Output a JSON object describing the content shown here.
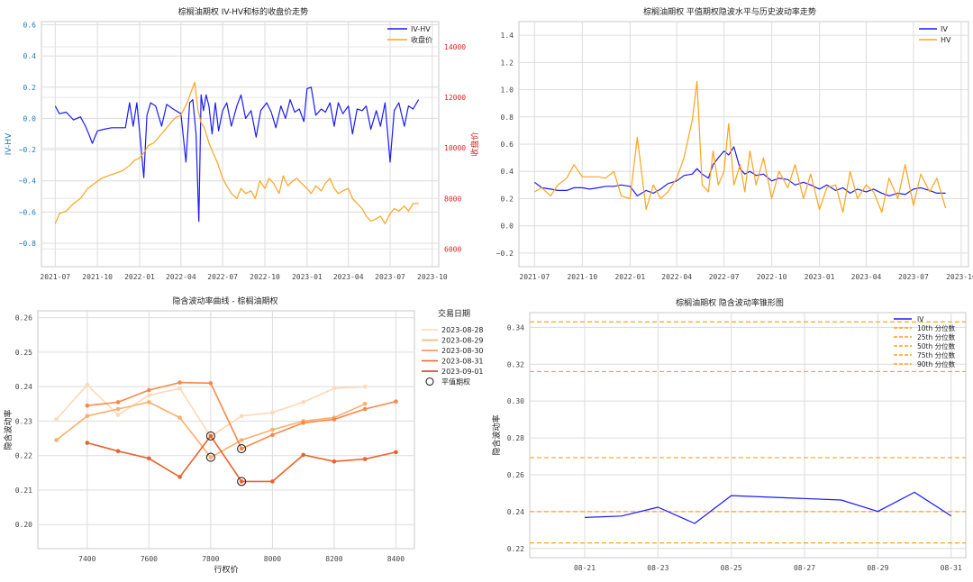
{
  "chart_data": [
    {
      "type": "line",
      "title": "棕榈油期权 IV-HV和标的收盘价走势",
      "ylabel": "IV-HV",
      "y2label": "收盘价",
      "legend_position": "top-right",
      "x_ticks": [
        "2021-07",
        "2021-10",
        "2022-01",
        "2022-04",
        "2022-07",
        "2022-10",
        "2023-01",
        "2023-04",
        "2023-07",
        "2023-10"
      ],
      "ylim": [
        -0.95,
        0.62
      ],
      "y_ticks": [
        0.6,
        0.4,
        0.2,
        0.0,
        -0.2,
        -0.4,
        -0.6,
        -0.8
      ],
      "y_tick_labels": [
        "0.6",
        "0.4",
        "0.2",
        "0.0",
        "−0.2",
        "−0.4",
        "−0.6",
        "−0.8"
      ],
      "y2lim": [
        5300,
        15000
      ],
      "y2_ticks": [
        14000,
        12000,
        10000,
        8000,
        6000
      ],
      "series": [
        {
          "name": "IV-HV",
          "axis": "left",
          "color": "#1a1aff",
          "x": [
            "2021-07-01",
            "2021-07-10",
            "2021-07-25",
            "2021-08-10",
            "2021-08-25",
            "2021-09-05",
            "2021-09-12",
            "2021-09-20",
            "2021-10-01",
            "2021-10-15",
            "2021-11-01",
            "2021-11-15",
            "2021-12-01",
            "2021-12-10",
            "2021-12-18",
            "2021-12-26",
            "2022-01-03",
            "2022-01-10",
            "2022-01-17",
            "2022-01-25",
            "2022-02-05",
            "2022-02-18",
            "2022-03-01",
            "2022-03-15",
            "2022-04-01",
            "2022-04-12",
            "2022-04-20",
            "2022-04-27",
            "2022-05-04",
            "2022-05-10",
            "2022-05-15",
            "2022-05-20",
            "2022-05-26",
            "2022-06-01",
            "2022-06-08",
            "2022-06-15",
            "2022-06-22",
            "2022-07-01",
            "2022-07-10",
            "2022-07-20",
            "2022-08-01",
            "2022-08-10",
            "2022-08-20",
            "2022-09-01",
            "2022-09-12",
            "2022-09-22",
            "2022-10-05",
            "2022-10-15",
            "2022-10-25",
            "2022-11-05",
            "2022-11-15",
            "2022-11-25",
            "2022-12-05",
            "2022-12-15",
            "2022-12-25",
            "2023-01-01",
            "2023-01-10",
            "2023-01-20",
            "2023-02-01",
            "2023-02-10",
            "2023-02-20",
            "2023-03-01",
            "2023-03-10",
            "2023-03-20",
            "2023-04-01",
            "2023-04-10",
            "2023-04-20",
            "2023-05-01",
            "2023-05-10",
            "2023-05-20",
            "2023-06-01",
            "2023-06-10",
            "2023-06-20",
            "2023-07-01",
            "2023-07-10",
            "2023-07-20",
            "2023-08-01",
            "2023-08-10",
            "2023-08-20",
            "2023-09-01"
          ],
          "y": [
            0.08,
            0.03,
            0.04,
            -0.01,
            0.01,
            -0.05,
            -0.1,
            -0.16,
            -0.08,
            -0.07,
            -0.06,
            -0.06,
            -0.06,
            0.1,
            -0.05,
            0.1,
            -0.15,
            -0.38,
            0.02,
            0.1,
            0.08,
            -0.05,
            0.09,
            0.06,
            0.03,
            -0.28,
            0.1,
            0.12,
            -0.1,
            -0.66,
            0.15,
            0.05,
            0.15,
            0.08,
            -0.1,
            0.1,
            -0.08,
            0.05,
            0.1,
            -0.05,
            0.08,
            0.15,
            0.0,
            0.05,
            -0.12,
            0.05,
            0.1,
            0.04,
            -0.06,
            0.08,
            0.0,
            0.12,
            0.04,
            0.06,
            -0.02,
            0.19,
            0.2,
            0.02,
            0.06,
            0.04,
            0.1,
            -0.05,
            0.1,
            0.03,
            0.08,
            -0.1,
            0.06,
            0.05,
            0.08,
            -0.07,
            0.05,
            -0.05,
            0.1,
            -0.28,
            0.05,
            0.1,
            -0.05,
            0.08,
            0.06,
            0.12
          ]
        },
        {
          "name": "收盘价",
          "axis": "right",
          "color": "#ffa31a",
          "x": [
            "2021-07-01",
            "2021-07-10",
            "2021-07-25",
            "2021-08-10",
            "2021-08-25",
            "2021-09-10",
            "2021-09-25",
            "2021-10-10",
            "2021-10-25",
            "2021-11-10",
            "2021-11-25",
            "2021-12-10",
            "2021-12-20",
            "2022-01-01",
            "2022-01-10",
            "2022-01-20",
            "2022-02-01",
            "2022-02-15",
            "2022-03-01",
            "2022-03-10",
            "2022-03-20",
            "2022-04-01",
            "2022-04-15",
            "2022-04-25",
            "2022-05-01",
            "2022-05-08",
            "2022-05-15",
            "2022-05-22",
            "2022-06-01",
            "2022-06-10",
            "2022-06-20",
            "2022-07-01",
            "2022-07-10",
            "2022-07-20",
            "2022-08-01",
            "2022-08-10",
            "2022-08-20",
            "2022-09-01",
            "2022-09-10",
            "2022-09-20",
            "2022-10-01",
            "2022-10-10",
            "2022-10-20",
            "2022-11-01",
            "2022-11-10",
            "2022-11-20",
            "2022-12-01",
            "2022-12-10",
            "2022-12-20",
            "2023-01-01",
            "2023-01-10",
            "2023-01-20",
            "2023-02-01",
            "2023-02-10",
            "2023-02-20",
            "2023-03-01",
            "2023-03-10",
            "2023-03-20",
            "2023-04-01",
            "2023-04-10",
            "2023-04-20",
            "2023-05-01",
            "2023-05-10",
            "2023-05-20",
            "2023-06-01",
            "2023-06-10",
            "2023-06-20",
            "2023-07-01",
            "2023-07-10",
            "2023-07-20",
            "2023-08-01",
            "2023-08-10",
            "2023-08-20",
            "2023-09-01"
          ],
          "y": [
            7000,
            7400,
            7500,
            7800,
            8000,
            8400,
            8600,
            8800,
            8900,
            9000,
            9100,
            9300,
            9500,
            9600,
            9800,
            10100,
            10200,
            10500,
            10800,
            11000,
            11200,
            11300,
            11800,
            12300,
            12600,
            11500,
            11000,
            10800,
            10200,
            9800,
            9400,
            8800,
            8500,
            8200,
            8000,
            8400,
            8200,
            8300,
            8000,
            8700,
            8400,
            8800,
            8600,
            8200,
            8900,
            8500,
            8700,
            8800,
            8600,
            8400,
            8200,
            8500,
            8300,
            8600,
            8800,
            8400,
            8200,
            8300,
            8400,
            8000,
            7800,
            7600,
            7300,
            7100,
            7200,
            7300,
            7000,
            7400,
            7600,
            7500,
            7700,
            7500,
            7800,
            7800
          ]
        }
      ]
    },
    {
      "type": "line",
      "title": "棕榈油期权 平值期权隐波水平与历史波动率走势",
      "legend_position": "top-right",
      "x_ticks": [
        "2021-07",
        "2021-10",
        "2022-01",
        "2022-04",
        "2022-07",
        "2022-10",
        "2023-01",
        "2023-04",
        "2023-07",
        "2023-10"
      ],
      "ylim": [
        -0.3,
        1.5
      ],
      "y_ticks": [
        1.4,
        1.2,
        1.0,
        0.8,
        0.6,
        0.4,
        0.2,
        0.0,
        -0.2
      ],
      "y_tick_labels": [
        "1.4",
        "1.2",
        "1.0",
        "0.8",
        "0.6",
        "0.4",
        "0.2",
        "0.0",
        "−0.2"
      ],
      "series": [
        {
          "name": "IV",
          "color": "#1a1aff",
          "x": [
            "2021-07-01",
            "2021-07-15",
            "2021-08-01",
            "2021-08-15",
            "2021-09-01",
            "2021-09-15",
            "2021-10-01",
            "2021-10-15",
            "2021-11-01",
            "2021-11-15",
            "2021-12-01",
            "2021-12-15",
            "2022-01-01",
            "2022-01-15",
            "2022-02-01",
            "2022-02-15",
            "2022-03-01",
            "2022-03-15",
            "2022-04-01",
            "2022-04-15",
            "2022-05-01",
            "2022-05-10",
            "2022-05-20",
            "2022-06-01",
            "2022-06-10",
            "2022-06-20",
            "2022-07-01",
            "2022-07-10",
            "2022-07-20",
            "2022-08-01",
            "2022-08-10",
            "2022-08-20",
            "2022-09-01",
            "2022-09-15",
            "2022-10-01",
            "2022-10-15",
            "2022-11-01",
            "2022-11-15",
            "2022-12-01",
            "2022-12-15",
            "2023-01-01",
            "2023-01-15",
            "2023-02-01",
            "2023-02-15",
            "2023-03-01",
            "2023-03-15",
            "2023-04-01",
            "2023-04-15",
            "2023-05-01",
            "2023-05-15",
            "2023-06-01",
            "2023-06-15",
            "2023-07-01",
            "2023-07-15",
            "2023-08-01",
            "2023-08-15",
            "2023-09-01"
          ],
          "y": [
            0.32,
            0.28,
            0.27,
            0.26,
            0.26,
            0.28,
            0.28,
            0.27,
            0.28,
            0.29,
            0.29,
            0.3,
            0.29,
            0.22,
            0.26,
            0.24,
            0.27,
            0.31,
            0.33,
            0.37,
            0.38,
            0.42,
            0.38,
            0.35,
            0.45,
            0.5,
            0.55,
            0.52,
            0.58,
            0.42,
            0.38,
            0.4,
            0.37,
            0.38,
            0.33,
            0.35,
            0.34,
            0.3,
            0.32,
            0.3,
            0.27,
            0.3,
            0.26,
            0.28,
            0.24,
            0.27,
            0.25,
            0.27,
            0.24,
            0.22,
            0.24,
            0.23,
            0.27,
            0.28,
            0.26,
            0.24,
            0.24
          ]
        },
        {
          "name": "HV",
          "color": "#ffa31a",
          "x": [
            "2021-07-01",
            "2021-07-15",
            "2021-08-01",
            "2021-08-15",
            "2021-09-01",
            "2021-09-15",
            "2021-10-01",
            "2021-10-15",
            "2021-11-01",
            "2021-11-15",
            "2021-12-01",
            "2021-12-15",
            "2022-01-01",
            "2022-01-15",
            "2022-02-01",
            "2022-02-15",
            "2022-03-01",
            "2022-03-15",
            "2022-04-01",
            "2022-04-15",
            "2022-05-01",
            "2022-05-10",
            "2022-05-20",
            "2022-06-01",
            "2022-06-10",
            "2022-06-20",
            "2022-07-01",
            "2022-07-10",
            "2022-07-20",
            "2022-08-01",
            "2022-08-10",
            "2022-08-20",
            "2022-09-01",
            "2022-09-15",
            "2022-10-01",
            "2022-10-15",
            "2022-11-01",
            "2022-11-15",
            "2022-12-01",
            "2022-12-15",
            "2023-01-01",
            "2023-01-15",
            "2023-02-01",
            "2023-02-15",
            "2023-03-01",
            "2023-03-15",
            "2023-04-01",
            "2023-04-15",
            "2023-05-01",
            "2023-05-15",
            "2023-06-01",
            "2023-06-15",
            "2023-07-01",
            "2023-07-15",
            "2023-08-01",
            "2023-08-15",
            "2023-09-01"
          ],
          "y": [
            0.25,
            0.28,
            0.22,
            0.3,
            0.35,
            0.45,
            0.36,
            0.36,
            0.36,
            0.35,
            0.4,
            0.22,
            0.2,
            0.65,
            0.12,
            0.3,
            0.2,
            0.25,
            0.35,
            0.5,
            0.78,
            1.06,
            0.3,
            0.25,
            0.55,
            0.3,
            0.4,
            0.75,
            0.3,
            0.45,
            0.25,
            0.55,
            0.3,
            0.5,
            0.2,
            0.4,
            0.28,
            0.45,
            0.2,
            0.38,
            0.12,
            0.28,
            0.3,
            0.1,
            0.4,
            0.2,
            0.3,
            0.25,
            0.1,
            0.35,
            0.2,
            0.45,
            0.15,
            0.38,
            0.25,
            0.35,
            0.13
          ]
        }
      ]
    },
    {
      "type": "line",
      "title": "隐含波动率曲线 - 棕榈油期权",
      "xlabel": "行权价",
      "ylabel": "隐含波动率",
      "legend_title": "交易日期",
      "legend_position": "top-right",
      "xlim": [
        7240,
        8460
      ],
      "ylim": [
        0.193,
        0.262
      ],
      "x_ticks": [
        7400,
        7600,
        7800,
        8000,
        8200,
        8400
      ],
      "y_ticks": [
        0.26,
        0.25,
        0.24,
        0.23,
        0.22,
        0.21,
        0.2
      ],
      "series": [
        {
          "name": "2023-08-28",
          "color": "#fdd9b4",
          "x": [
            7300,
            7400,
            7500,
            7600,
            7700,
            7800,
            7900,
            8000,
            8100,
            8200,
            8300
          ],
          "y": [
            0.2305,
            0.2405,
            0.2318,
            0.2375,
            0.2395,
            0.2255,
            0.2315,
            0.2325,
            0.2355,
            0.2395,
            0.24
          ]
        },
        {
          "name": "2023-08-29",
          "color": "#fdae6b",
          "x": [
            7300,
            7400,
            7500,
            7600,
            7700,
            7800,
            7900,
            8000,
            8100,
            8200,
            8300
          ],
          "y": [
            0.2245,
            0.2315,
            0.2335,
            0.2355,
            0.231,
            0.2195,
            0.2245,
            0.2275,
            0.23,
            0.231,
            0.235
          ]
        },
        {
          "name": "2023-08-30",
          "color": "#f8884a",
          "x": [
            7400,
            7500,
            7600,
            7700,
            7800,
            7900,
            8000,
            8100,
            8200,
            8300,
            8400
          ],
          "y": [
            0.2345,
            0.2355,
            0.239,
            0.2412,
            0.241,
            0.222,
            0.226,
            0.2295,
            0.2305,
            0.2335,
            0.2357
          ]
        },
        {
          "name": "2023-08-31",
          "color": "#e8622a",
          "x": [
            7400,
            7500,
            7600,
            7700,
            7800,
            7900,
            8000,
            8100,
            8200,
            8300,
            8400
          ],
          "y": [
            0.2237,
            0.2213,
            0.2192,
            0.2138,
            0.2257,
            0.2125,
            0.2125,
            0.2202,
            0.2183,
            0.219,
            0.221
          ]
        },
        {
          "name": "2023-09-01",
          "color": "#c8361a",
          "x": [],
          "y": []
        }
      ],
      "atm_label": "平值期权",
      "atm_points": [
        {
          "x": 7800,
          "y": 0.2257
        },
        {
          "x": 7800,
          "y": 0.2195
        },
        {
          "x": 7900,
          "y": 0.222
        },
        {
          "x": 7900,
          "y": 0.2125
        }
      ]
    },
    {
      "type": "line",
      "title": "棕榈油期权 隐含波动率锥形图",
      "ylabel": "隐含波动率",
      "legend_position": "top-right",
      "ylim": [
        0.215,
        0.348
      ],
      "y_ticks": [
        0.34,
        0.32,
        0.3,
        0.28,
        0.26,
        0.24,
        0.22
      ],
      "x_ticks": [
        "08-21",
        "08-23",
        "08-25",
        "08-27",
        "08-29",
        "08-31"
      ],
      "series": [
        {
          "name": "IV",
          "color": "#1a1aff",
          "x": [
            "2023-08-21",
            "2023-08-22",
            "2023-08-23",
            "2023-08-24",
            "2023-08-25",
            "2023-08-28",
            "2023-08-29",
            "2023-08-30",
            "2023-08-31"
          ],
          "y": [
            0.2368,
            0.2376,
            0.2424,
            0.2336,
            0.2487,
            0.2463,
            0.2401,
            0.2505,
            0.2377
          ]
        }
      ],
      "percentiles": [
        {
          "name": "10th 分位数",
          "value": 0.223,
          "color": "#ffa31a"
        },
        {
          "name": "25th 分位数",
          "value": 0.24,
          "color": "#ffa31a"
        },
        {
          "name": "50th 分位数",
          "value": 0.2693,
          "color": "#ffa31a"
        },
        {
          "name": "75th 分位数",
          "value": 0.316,
          "color": "#ffa31a"
        },
        {
          "name": "90th 分位数",
          "value": 0.343,
          "color": "#ffa31a"
        }
      ]
    }
  ]
}
